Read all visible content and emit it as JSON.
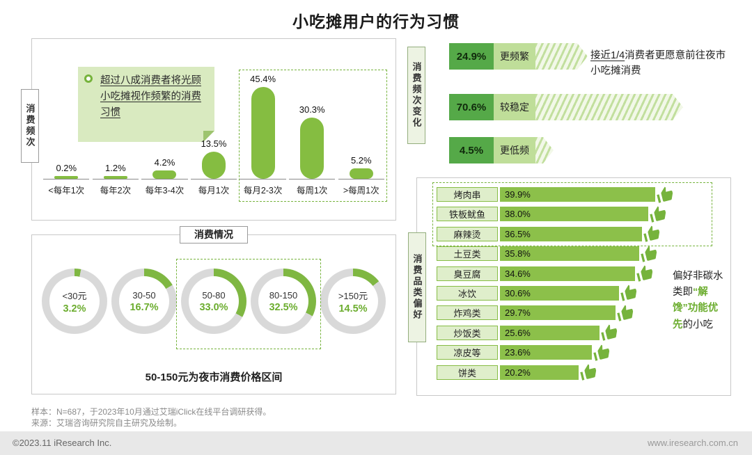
{
  "title": "小吃摊用户的行为习惯",
  "colors": {
    "green": "#7FB742",
    "dark_green": "#55A948",
    "light_green": "#BFDE99",
    "pale_green": "#DFEECB",
    "ring_gray": "#D9D9D9",
    "accent_text": "#6CAD2F"
  },
  "frequency_panel": {
    "side_label": "消费频次",
    "callout_text": "超过八成消费者将光顾小吃摊视作频繁的消费习惯",
    "bars": [
      {
        "category": "<每年1次",
        "value_label": "0.2%",
        "value": 0.2
      },
      {
        "category": "每年2次",
        "value_label": "1.2%",
        "value": 1.2
      },
      {
        "category": "每年3-4次",
        "value_label": "4.2%",
        "value": 4.2
      },
      {
        "category": "每月1次",
        "value_label": "13.5%",
        "value": 13.5
      },
      {
        "category": "每月2-3次",
        "value_label": "45.4%",
        "value": 45.4
      },
      {
        "category": "每周1次",
        "value_label": "30.3%",
        "value": 30.3
      },
      {
        "category": ">每周1次",
        "value_label": "5.2%",
        "value": 5.2
      }
    ]
  },
  "spend_panel": {
    "header": "消费情况",
    "donuts": [
      {
        "label": "<30元",
        "pct": "3.2%",
        "value": 3.2
      },
      {
        "label": "30-50",
        "pct": "16.7%",
        "value": 16.7
      },
      {
        "label": "50-80",
        "pct": "33.0%",
        "value": 33.0
      },
      {
        "label": "80-150",
        "pct": "32.5%",
        "value": 32.5
      },
      {
        "label": ">150元",
        "pct": "14.5%",
        "value": 14.5
      }
    ],
    "caption": "50-150元为夜市消费价格区间"
  },
  "change_panel": {
    "side_label": "消费频次变化",
    "rows": [
      {
        "pct": "24.9%",
        "label": "更频繁",
        "value": 24.9
      },
      {
        "pct": "70.6%",
        "label": "较稳定",
        "value": 70.6
      },
      {
        "pct": "4.5%",
        "label": "更低频",
        "value": 4.5
      }
    ],
    "note_highlight": "接近1/4",
    "note_rest": "消费者更愿意前往夜市小吃摊消费"
  },
  "category_panel": {
    "side_label": "消费品类偏好",
    "items": [
      {
        "label": "烤肉串",
        "pct": "39.9%",
        "value": 39.9
      },
      {
        "label": "铁板鱿鱼",
        "pct": "38.0%",
        "value": 38.0
      },
      {
        "label": "麻辣烫",
        "pct": "36.5%",
        "value": 36.5
      },
      {
        "label": "土豆类",
        "pct": "35.8%",
        "value": 35.8
      },
      {
        "label": "臭豆腐",
        "pct": "34.6%",
        "value": 34.6
      },
      {
        "label": "冰饮",
        "pct": "30.6%",
        "value": 30.6
      },
      {
        "label": "炸鸡类",
        "pct": "29.7%",
        "value": 29.7
      },
      {
        "label": "炒饭类",
        "pct": "25.6%",
        "value": 25.6
      },
      {
        "label": "凉皮等",
        "pct": "23.6%",
        "value": 23.6
      },
      {
        "label": "饼类",
        "pct": "20.2%",
        "value": 20.2
      }
    ],
    "note_parts": {
      "p1": "偏好非碳水类即",
      "p2": "“解馋”",
      "p3": "功能优先",
      "p4": "的小吃"
    }
  },
  "footer": {
    "sample": "样本：N=687，于2023年10月通过艾瑞iClick在线平台调研获得。",
    "source": "来源：艾瑞咨询研究院自主研究及绘制。",
    "copyright": "©2023.11 iResearch Inc.",
    "website": "www.iresearch.com.cn"
  },
  "chart_data": [
    {
      "type": "bar",
      "title": "消费频次",
      "categories": [
        "<每年1次",
        "每年2次",
        "每年3-4次",
        "每月1次",
        "每月2-3次",
        "每周1次",
        ">每周1次"
      ],
      "values": [
        0.2,
        1.2,
        4.2,
        13.5,
        45.4,
        30.3,
        5.2
      ],
      "unit": "%",
      "annotation": "超过八成消费者将光顾小吃摊视作频繁的消费习惯",
      "highlighted_categories": [
        "每月2-3次",
        "每周1次",
        ">每周1次"
      ]
    },
    {
      "type": "pie",
      "title": "消费情况（消费价格区间）",
      "categories": [
        "<30元",
        "30-50",
        "50-80",
        "80-150",
        ">150元"
      ],
      "values": [
        3.2,
        16.7,
        33.0,
        32.5,
        14.5
      ],
      "unit": "%",
      "annotation": "50-150元为夜市消费价格区间",
      "highlighted_categories": [
        "50-80",
        "80-150"
      ]
    },
    {
      "type": "bar",
      "title": "消费频次变化",
      "categories": [
        "更频繁",
        "较稳定",
        "更低频"
      ],
      "values": [
        24.9,
        70.6,
        4.5
      ],
      "unit": "%",
      "annotation": "接近1/4消费者更愿意前往夜市小吃摊消费"
    },
    {
      "type": "bar",
      "title": "消费品类偏好",
      "categories": [
        "烤肉串",
        "铁板鱿鱼",
        "麻辣烫",
        "土豆类",
        "臭豆腐",
        "冰饮",
        "炸鸡类",
        "炒饭类",
        "凉皮等",
        "饼类"
      ],
      "values": [
        39.9,
        38.0,
        36.5,
        35.8,
        34.6,
        30.6,
        29.7,
        25.6,
        23.6,
        20.2
      ],
      "unit": "%",
      "annotation": "偏好非碳水类即“解馋”功能优先的小吃",
      "highlighted_categories": [
        "烤肉串",
        "铁板鱿鱼",
        "麻辣烫"
      ]
    }
  ]
}
